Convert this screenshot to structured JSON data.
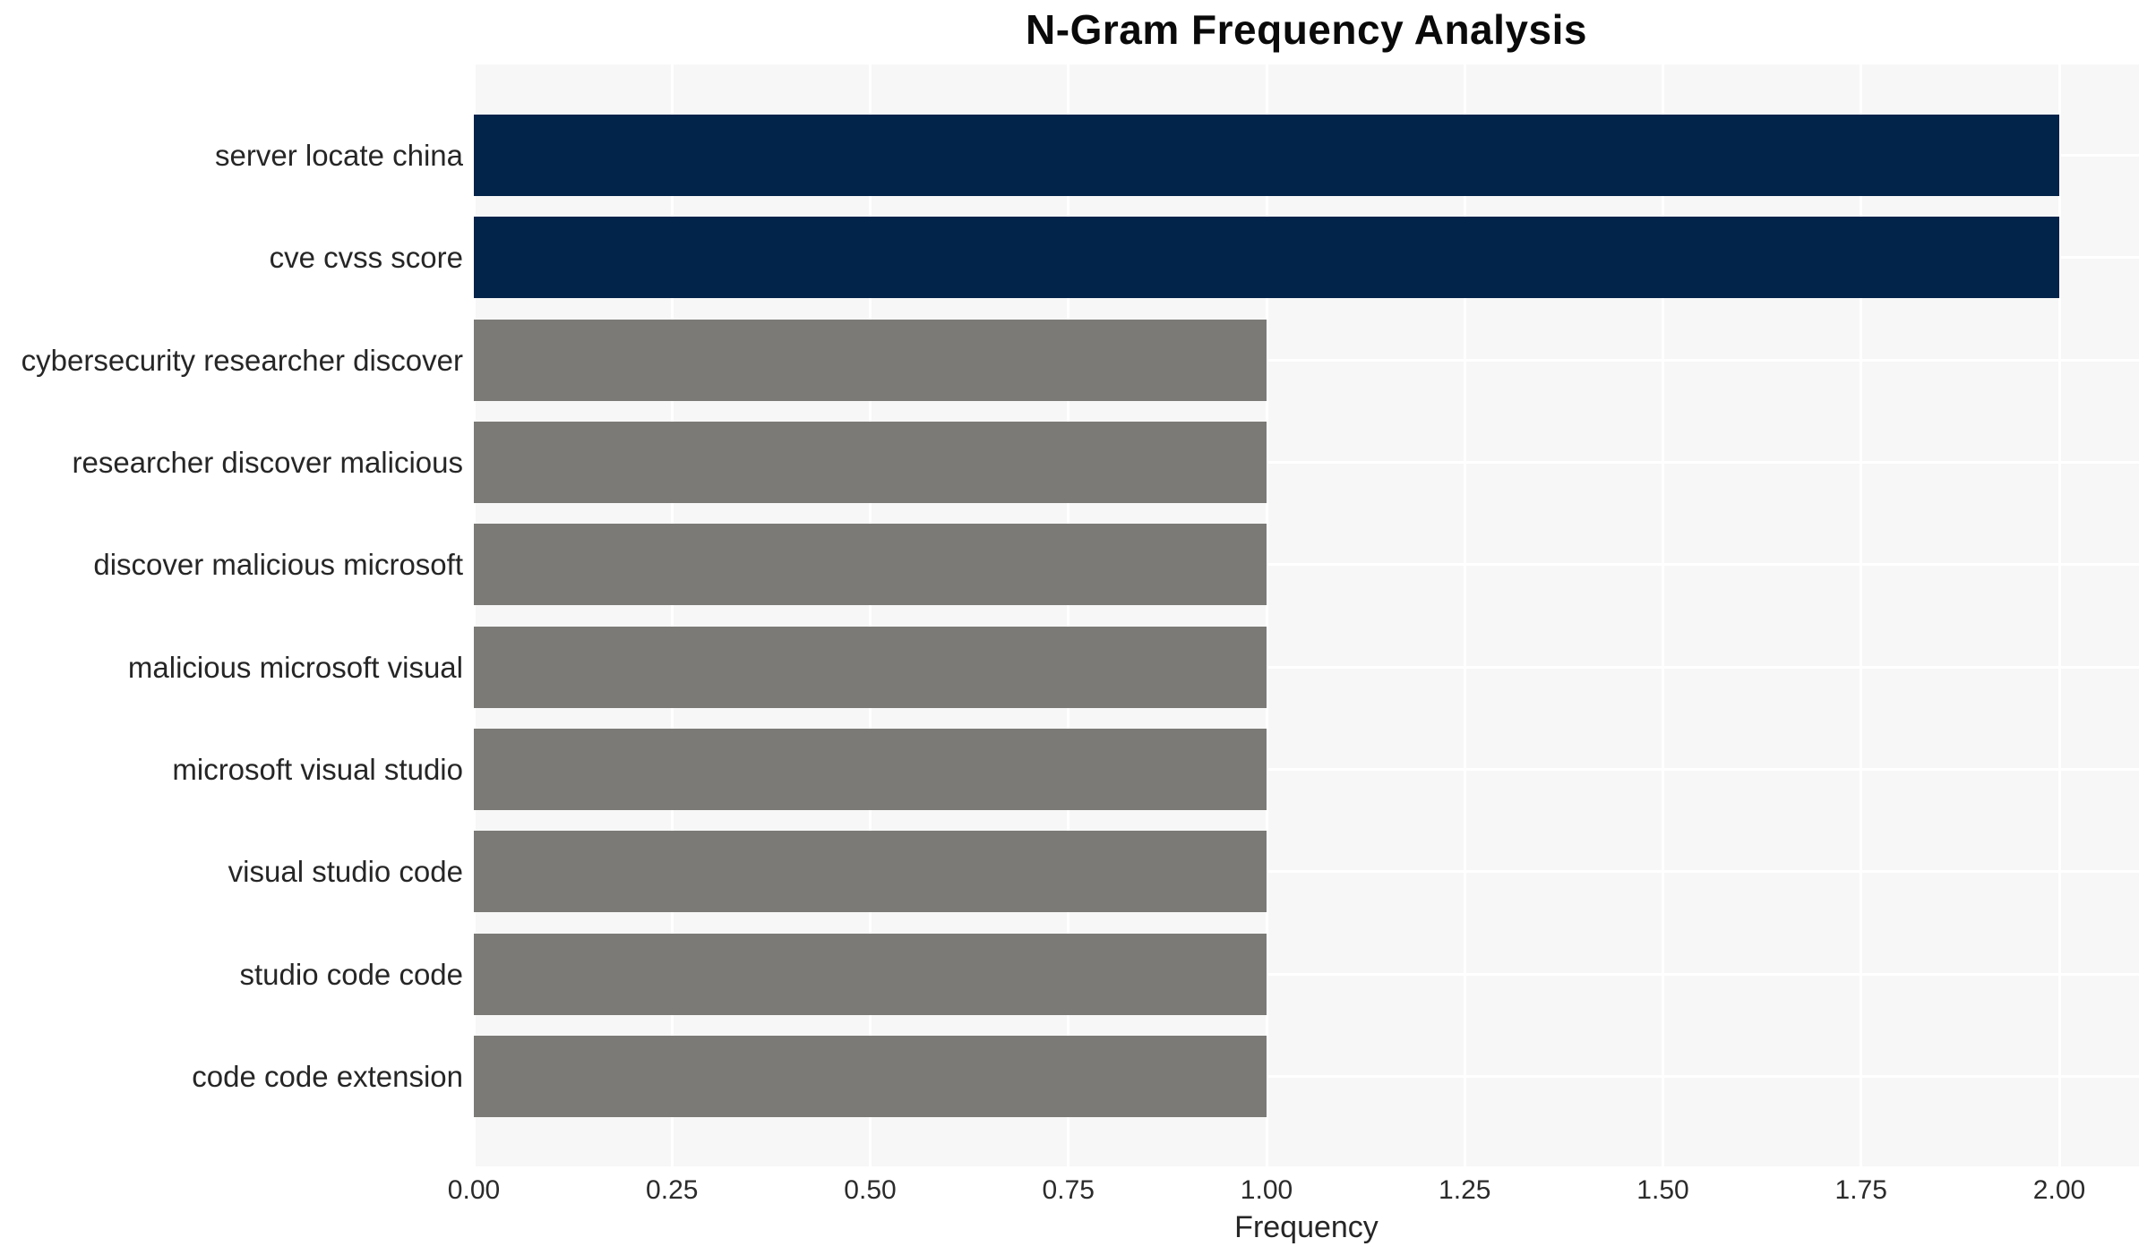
{
  "chart_data": {
    "type": "bar",
    "orientation": "horizontal",
    "title": "N-Gram Frequency Analysis",
    "xlabel": "Frequency",
    "ylabel": "",
    "categories": [
      "server locate china",
      "cve cvss score",
      "cybersecurity researcher discover",
      "researcher discover malicious",
      "discover malicious microsoft",
      "malicious microsoft visual",
      "microsoft visual studio",
      "visual studio code",
      "studio code code",
      "code code extension"
    ],
    "values": [
      2,
      2,
      1,
      1,
      1,
      1,
      1,
      1,
      1,
      1
    ],
    "bar_colors": [
      "#02234a",
      "#02234a",
      "#7b7a77",
      "#7b7a77",
      "#7b7a77",
      "#7b7a77",
      "#7b7a77",
      "#7b7a77",
      "#7b7a77",
      "#7b7a77"
    ],
    "xlim": [
      0,
      2.1
    ],
    "xticks": [
      0,
      0.25,
      0.5,
      0.75,
      1.0,
      1.25,
      1.5,
      1.75,
      2.0
    ],
    "xtick_labels": [
      "0.00",
      "0.25",
      "0.50",
      "0.75",
      "1.00",
      "1.25",
      "1.50",
      "1.75",
      "2.00"
    ],
    "legend": "none",
    "grid": "on",
    "colors": {
      "highlight_bar": "#02234a",
      "default_bar": "#7b7a77",
      "panel_background": "#f7f7f7",
      "grid_line": "#ffffff",
      "tick_text": "#2b2b2b",
      "label_text": "#262626",
      "title_text": "#0a0a0a"
    }
  }
}
